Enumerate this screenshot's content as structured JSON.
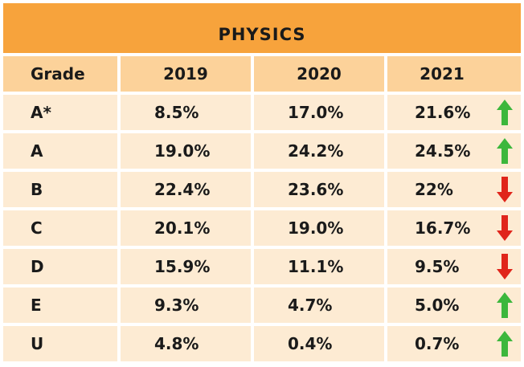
{
  "chart_data": {
    "type": "table",
    "title": "PHYSICS",
    "columns": [
      "Grade",
      "2019",
      "2020",
      "2021"
    ],
    "rows": [
      {
        "grade": "A*",
        "y2019": "8.5%",
        "y2020": "17.0%",
        "y2021": "21.6%",
        "trend": "up"
      },
      {
        "grade": "A",
        "y2019": "19.0%",
        "y2020": "24.2%",
        "y2021": "24.5%",
        "trend": "up"
      },
      {
        "grade": "B",
        "y2019": "22.4%",
        "y2020": "23.6%",
        "y2021": "22%",
        "trend": "down"
      },
      {
        "grade": "C",
        "y2019": "20.1%",
        "y2020": "19.0%",
        "y2021": "16.7%",
        "trend": "down"
      },
      {
        "grade": "D",
        "y2019": "15.9%",
        "y2020": "11.1%",
        "y2021": "9.5%",
        "trend": "down"
      },
      {
        "grade": "E",
        "y2019": "9.3%",
        "y2020": "4.7%",
        "y2021": "5.0%",
        "trend": "up"
      },
      {
        "grade": "U",
        "y2019": "4.8%",
        "y2020": "0.4%",
        "y2021": "0.7%",
        "trend": "up"
      }
    ]
  },
  "colors": {
    "title_bg": "#f7a33c",
    "header_bg": "#fcd29a",
    "row_bg": "#fdebd3",
    "up": "#3cb73c",
    "down": "#e0251b"
  }
}
